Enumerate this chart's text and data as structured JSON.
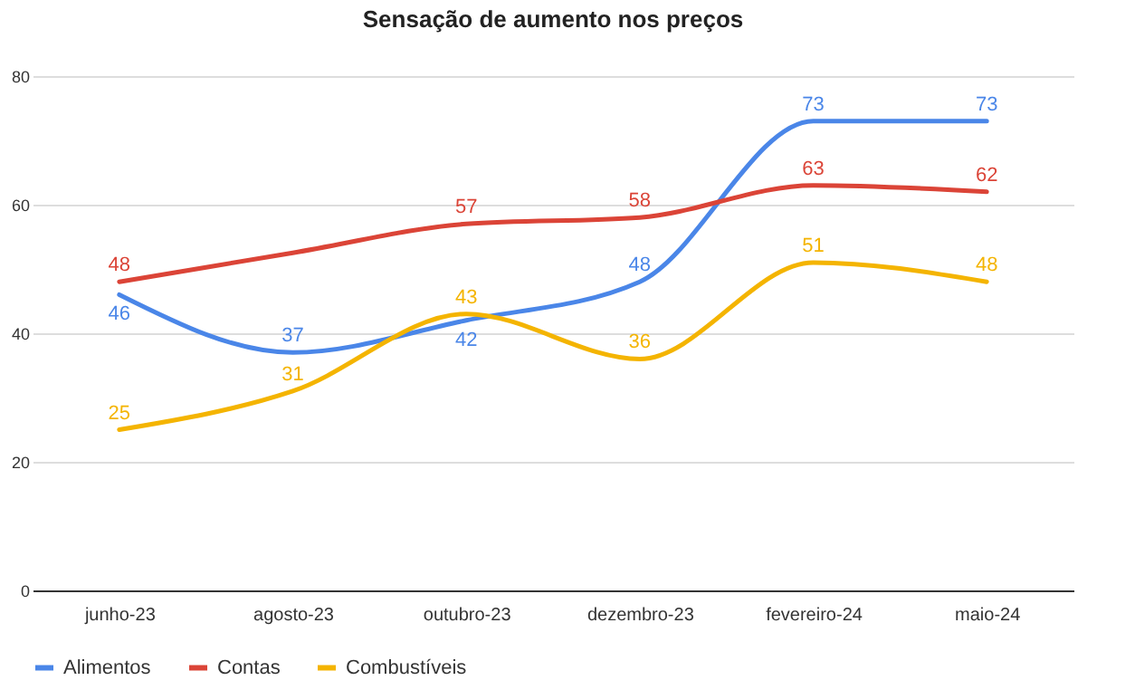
{
  "chart_data": {
    "type": "line",
    "title": "Sensação de aumento nos preços",
    "categories": [
      "junho-23",
      "agosto-23",
      "outubro-23",
      "dezembro-23",
      "fevereiro-24",
      "maio-24"
    ],
    "series": [
      {
        "name": "Alimentos",
        "color": "#4a86e8",
        "values": [
          46,
          37,
          42,
          48,
          73,
          73
        ],
        "value_labels": [
          "46",
          "37",
          "42",
          "48",
          "73",
          "73"
        ]
      },
      {
        "name": "Contas",
        "color": "#db4437",
        "values": [
          48,
          52.5,
          57,
          58,
          63,
          62
        ],
        "value_labels": [
          "48",
          null,
          "57",
          "58",
          "63",
          "62"
        ]
      },
      {
        "name": "Combustíveis",
        "color": "#f4b400",
        "values": [
          25,
          31,
          43,
          36,
          51,
          48
        ],
        "value_labels": [
          "25",
          "31",
          "43",
          "36",
          "51",
          "48"
        ]
      }
    ],
    "ylim": [
      0,
      80
    ],
    "yticks": [
      0,
      20,
      40,
      60,
      80
    ],
    "grid": "y",
    "legend": "bottom"
  }
}
